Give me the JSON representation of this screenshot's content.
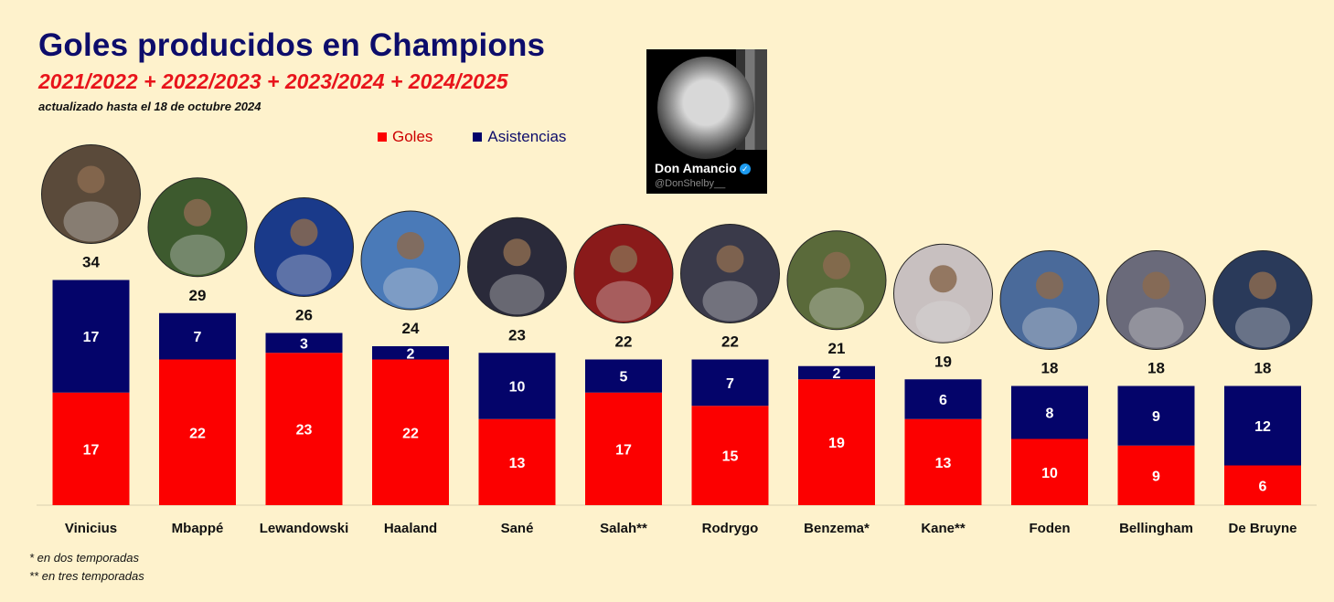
{
  "header": {
    "title": "Goles producidos en Champions",
    "subtitle": "2021/2022 + 2022/2023 + 2023/2024 + 2024/2025",
    "updated": "actualizado hasta el 18 de octubre 2024"
  },
  "legend": {
    "goles_label": "Goles",
    "asistencias_label": "Asistencias"
  },
  "badge": {
    "name": "Don Amancio",
    "handle": "@DonShelby__"
  },
  "colors": {
    "goles": "#fc0000",
    "asistencias": "#04046a",
    "background": "#fef2cc"
  },
  "chart_data": {
    "type": "bar",
    "stacked": true,
    "title": "Goles producidos en Champions",
    "categories": [
      "Vinicius",
      "Mbappé",
      "Lewandowski",
      "Haaland",
      "Sané",
      "Salah**",
      "Rodrygo",
      "Benzema*",
      "Kane**",
      "Foden",
      "Bellingham",
      "De Bruyne"
    ],
    "series": [
      {
        "name": "Goles",
        "values": [
          17,
          22,
          23,
          22,
          13,
          17,
          15,
          19,
          13,
          10,
          9,
          6
        ]
      },
      {
        "name": "Asistencias",
        "values": [
          17,
          7,
          3,
          2,
          10,
          5,
          7,
          2,
          6,
          8,
          9,
          12
        ]
      }
    ],
    "totals": [
      34,
      29,
      26,
      24,
      23,
      22,
      22,
      21,
      19,
      18,
      18,
      18
    ],
    "legend_position": "top"
  },
  "footnotes": [
    "* en dos temporadas",
    "** en tres temporadas"
  ]
}
